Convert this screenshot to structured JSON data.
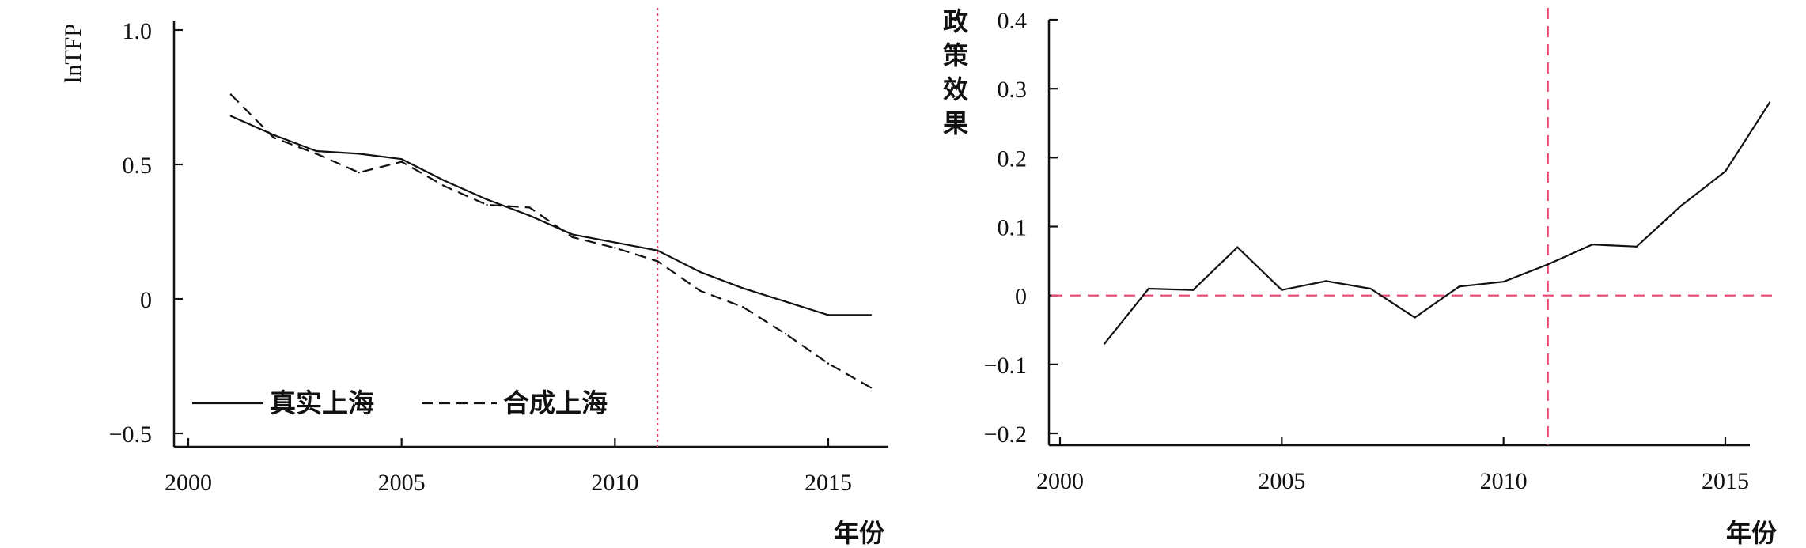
{
  "chart_data": [
    {
      "type": "line",
      "title": "",
      "xlabel": "年份",
      "ylabel": "lnTFP",
      "xlim": [
        2000,
        2016
      ],
      "ylim": [
        -0.5,
        1.0
      ],
      "x_ticks": [
        2000,
        2005,
        2010,
        2015
      ],
      "x_tick_labels": [
        "2000",
        "2005",
        "2010",
        "2015"
      ],
      "y_ticks": [
        -0.5,
        0,
        0.5,
        1.0
      ],
      "y_tick_labels": [
        "−0.5",
        "0",
        "0.5",
        "1.0"
      ],
      "reference_line_x": 2011,
      "reference_color": "#e8486e",
      "legend_position": "bottom-left",
      "x": [
        2001,
        2002,
        2003,
        2004,
        2005,
        2006,
        2007,
        2008,
        2009,
        2010,
        2011,
        2012,
        2013,
        2014,
        2015,
        2016
      ],
      "series": [
        {
          "name": "真实上海",
          "style": "solid",
          "values": [
            0.68,
            0.61,
            0.55,
            0.54,
            0.52,
            0.44,
            0.37,
            0.31,
            0.24,
            0.21,
            0.18,
            0.1,
            0.04,
            -0.01,
            -0.06,
            -0.06
          ]
        },
        {
          "name": "合成上海",
          "style": "dashed",
          "values": [
            0.76,
            0.6,
            0.54,
            0.47,
            0.51,
            0.42,
            0.35,
            0.34,
            0.23,
            0.19,
            0.14,
            0.03,
            -0.03,
            -0.13,
            -0.24,
            -0.33
          ]
        }
      ]
    },
    {
      "type": "line",
      "title": "",
      "xlabel": "年份",
      "ylabel": "政策效果",
      "xlim": [
        2000,
        2016
      ],
      "ylim": [
        -0.2,
        0.4
      ],
      "x_ticks": [
        2000,
        2005,
        2010,
        2015
      ],
      "x_tick_labels": [
        "2000",
        "2005",
        "2010",
        "2015"
      ],
      "y_ticks": [
        -0.2,
        -0.1,
        0,
        0.1,
        0.2,
        0.3,
        0.4
      ],
      "y_tick_labels": [
        "−0.2",
        "−0.1",
        "0",
        "0.1",
        "0.2",
        "0.3",
        "0.4"
      ],
      "reference_line_x": 2011,
      "reference_line_y": 0,
      "reference_color": "#e8486e",
      "x": [
        2001,
        2002,
        2003,
        2004,
        2005,
        2006,
        2007,
        2008,
        2009,
        2010,
        2011,
        2012,
        2013,
        2014,
        2015,
        2016
      ],
      "series": [
        {
          "style": "solid",
          "values": [
            -0.07,
            0.01,
            0.008,
            0.07,
            0.008,
            0.021,
            0.01,
            -0.032,
            0.013,
            0.02,
            0.045,
            0.074,
            0.071,
            0.13,
            0.18,
            0.28
          ]
        }
      ]
    }
  ]
}
